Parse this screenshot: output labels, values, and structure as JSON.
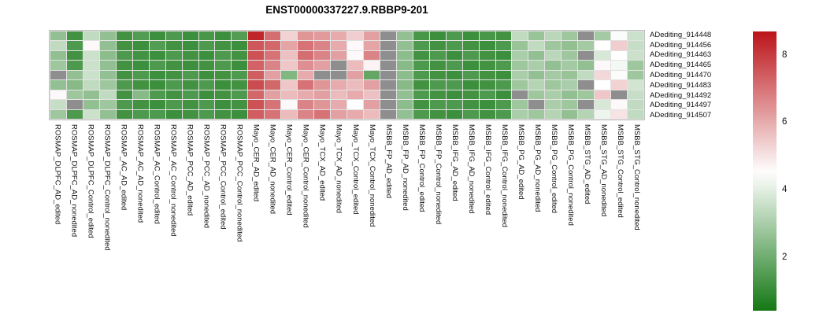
{
  "title": "ENST00000337227.9.RBBP9-201",
  "chart_data": {
    "type": "heatmap",
    "title": "ENST00000337227.9.RBBP9-201",
    "rows": [
      "ADediting_914448",
      "ADediting_914456",
      "ADediting_914463",
      "ADediting_914465",
      "ADediting_914470",
      "ADediting_914483",
      "ADediting_914492",
      "ADediting_914497",
      "ADediting_914507"
    ],
    "columns": [
      "ROSMAP_DLPFC_AD_edited",
      "ROSMAP_DLPFC_AD_nonedited",
      "ROSMAP_DLPFC_Control_edited",
      "ROSMAP_DLPFC_Control_nonedited",
      "ROSMAP_AC_AD_edited",
      "ROSMAP_AC_AD_nonedited",
      "ROSMAP_AC_Control_edited",
      "ROSMAP_AC_Control_nonedited",
      "ROSMAP_PCC_AD_edited",
      "ROSMAP_PCC_AD_nonedited",
      "ROSMAP_PCC_Control_edited",
      "ROSMAP_PCC_Control_nonedited",
      "Mayo_CER_AD_edited",
      "Mayo_CER_AD_nonedited",
      "Mayo_CER_Control_edited",
      "Mayo_CER_Control_nonedited",
      "Mayo_TCX_AD_edited",
      "Mayo_TCX_AD_nonedited",
      "Mayo_TCX_Control_edited",
      "Mayo_TCX_Control_nonedited",
      "MSBB_FP_AD_edited",
      "MSBB_FP_AD_nonedited",
      "MSBB_FP_Control_edited",
      "MSBB_FP_Control_nonedited",
      "MSBB_IFG_AD_edited",
      "MSBB_IFG_AD_nonedited",
      "MSBB_IFG_Control_edited",
      "MSBB_IFG_Control_nonedited",
      "MSBB_PG_AD_edited",
      "MSBB_PG_AD_nonedited",
      "MSBB_PG_Control_edited",
      "MSBB_PG_Control_nonedited",
      "MSBB_STG_AD_edited",
      "MSBB_STG_AD_nonedited",
      "MSBB_STG_Control_edited",
      "MSBB_STG_Control_nonedited"
    ],
    "values": [
      [
        2.6,
        1.2,
        3.4,
        2.6,
        1.2,
        1.5,
        1.1,
        1.4,
        1.1,
        1.3,
        1.1,
        1.5,
        8.4,
        7.1,
        5.3,
        6.4,
        6.3,
        6.0,
        5.4,
        6.2,
        null,
        2.6,
        1.3,
        1.1,
        1.4,
        1.1,
        1.3,
        1.2,
        3.4,
        2.7,
        3.3,
        2.8,
        null,
        2.9,
        4.4,
        3.6
      ],
      [
        3.4,
        1.4,
        4.6,
        2.6,
        1.2,
        1.1,
        1.5,
        1.2,
        1.1,
        1.4,
        1.2,
        1.1,
        7.5,
        7.2,
        6.1,
        7.0,
        6.7,
        6.0,
        4.6,
        6.1,
        null,
        2.6,
        1.4,
        1.2,
        1.4,
        1.2,
        1.1,
        1.4,
        2.7,
        3.4,
        2.8,
        2.6,
        2.9,
        4.5,
        5.4,
        3.5
      ],
      [
        2.6,
        1.2,
        3.6,
        2.5,
        1.4,
        1.2,
        1.1,
        1.4,
        1.2,
        1.1,
        1.4,
        1.2,
        7.6,
        7.0,
        5.6,
        7.1,
        6.7,
        6.2,
        4.6,
        6.7,
        null,
        2.5,
        1.2,
        1.4,
        1.1,
        1.4,
        1.2,
        1.1,
        3.0,
        2.6,
        3.3,
        2.8,
        null,
        3.8,
        4.5,
        3.6
      ],
      [
        2.8,
        1.4,
        3.6,
        2.6,
        1.2,
        1.1,
        1.4,
        1.2,
        1.1,
        1.2,
        1.4,
        1.1,
        7.3,
        6.7,
        5.5,
        6.5,
        6.2,
        null,
        5.7,
        4.7,
        null,
        2.4,
        1.4,
        1.2,
        1.4,
        1.1,
        1.2,
        1.4,
        2.8,
        3.0,
        2.6,
        2.9,
        2.6,
        4.6,
        4.3,
        2.8
      ],
      [
        null,
        2.6,
        3.6,
        2.6,
        1.2,
        1.4,
        1.1,
        1.2,
        1.4,
        1.1,
        1.2,
        1.4,
        7.4,
        6.2,
        2.3,
        6.0,
        null,
        null,
        6.2,
        1.8,
        null,
        2.5,
        1.4,
        1.2,
        1.1,
        1.4,
        1.2,
        1.1,
        3.0,
        2.6,
        2.9,
        2.7,
        3.4,
        5.2,
        4.4,
        2.8
      ],
      [
        2.6,
        2.4,
        3.4,
        2.8,
        1.4,
        1.2,
        1.1,
        1.4,
        1.2,
        1.4,
        1.1,
        1.2,
        7.7,
        7.2,
        5.5,
        7.0,
        6.4,
        6.0,
        5.7,
        6.2,
        null,
        2.4,
        1.2,
        1.4,
        1.4,
        1.1,
        1.2,
        1.4,
        2.8,
        3.2,
        2.8,
        3.0,
        null,
        4.5,
        5.3,
        3.7
      ],
      [
        4.6,
        2.8,
        2.6,
        3.4,
        1.2,
        2.4,
        1.4,
        1.2,
        1.4,
        1.1,
        1.2,
        1.4,
        7.2,
        6.2,
        5.7,
        6.0,
        6.2,
        5.7,
        6.0,
        5.6,
        null,
        2.6,
        1.4,
        1.2,
        1.1,
        1.2,
        1.4,
        1.1,
        null,
        2.8,
        3.0,
        2.6,
        2.8,
        5.5,
        null,
        3.5
      ],
      [
        3.5,
        null,
        2.6,
        2.8,
        1.4,
        1.2,
        1.1,
        1.4,
        1.2,
        1.4,
        1.1,
        1.2,
        7.6,
        7.0,
        4.6,
        6.7,
        6.4,
        6.0,
        4.5,
        6.2,
        null,
        2.5,
        1.2,
        1.4,
        1.4,
        1.2,
        1.1,
        1.4,
        2.8,
        null,
        3.0,
        2.8,
        null,
        3.8,
        4.6,
        3.4
      ],
      [
        2.8,
        1.4,
        3.6,
        2.6,
        1.2,
        1.4,
        1.4,
        1.1,
        1.2,
        1.4,
        1.2,
        1.1,
        7.4,
        7.0,
        5.7,
        6.7,
        7.0,
        6.2,
        6.0,
        5.7,
        null,
        2.6,
        1.4,
        1.2,
        1.1,
        1.4,
        1.2,
        1.4,
        3.0,
        2.8,
        3.2,
        2.6,
        3.2,
        4.2,
        5.0,
        3.4
      ]
    ],
    "colorscale": {
      "min": 0.4,
      "mid": 4.5,
      "max": 8.7,
      "low_color": "#147814",
      "mid_color": "#ffffff",
      "high_color": "#bb1419",
      "na_color": "#8e8e8e"
    },
    "colorbar_ticks": [
      8,
      6,
      4,
      2
    ],
    "legend_position": "right",
    "grid": false,
    "xlabel": "",
    "ylabel": ""
  }
}
